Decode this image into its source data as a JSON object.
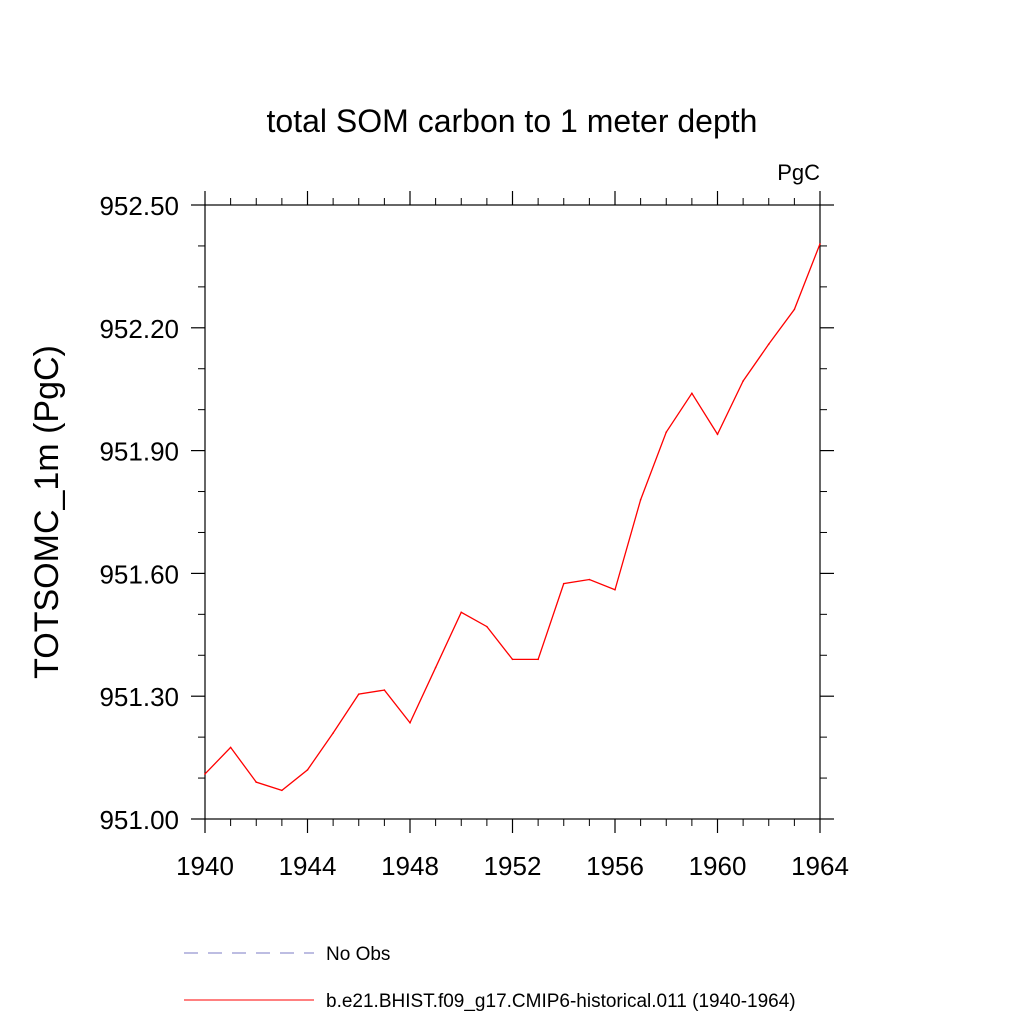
{
  "chart_data": {
    "type": "line",
    "title": "total SOM carbon to 1 meter depth",
    "units_label": "PgC",
    "ylabel": "TOTSOMC_1m  (PgC)",
    "xlabel": "",
    "xlim": [
      1940,
      1964
    ],
    "ylim": [
      951.0,
      952.5
    ],
    "x_ticks": [
      1940,
      1944,
      1948,
      1952,
      1956,
      1960,
      1964
    ],
    "x_tick_labels": [
      "1940",
      "1944",
      "1948",
      "1952",
      "1956",
      "1960",
      "1964"
    ],
    "y_ticks": [
      951.0,
      951.3,
      951.6,
      951.9,
      952.2,
      952.5
    ],
    "y_tick_labels": [
      "951.00",
      "951.30",
      "951.60",
      "951.90",
      "952.20",
      "952.50"
    ],
    "grid": false,
    "legend_position": "bottom",
    "series": [
      {
        "name": "b.e21.BHIST.f09_g17.CMIP6-historical.011 (1940-1964)",
        "color": "#ff0000",
        "dash": "solid",
        "x": [
          1940,
          1941,
          1942,
          1943,
          1944,
          1945,
          1946,
          1947,
          1948,
          1949,
          1950,
          1951,
          1952,
          1953,
          1954,
          1955,
          1956,
          1957,
          1958,
          1959,
          1960,
          1961,
          1962,
          1963,
          1964
        ],
        "values": [
          951.11,
          951.175,
          951.09,
          951.07,
          951.12,
          951.21,
          951.305,
          951.315,
          951.235,
          951.37,
          951.505,
          951.47,
          951.39,
          951.39,
          951.575,
          951.585,
          951.56,
          951.78,
          951.945,
          952.04,
          951.94,
          952.07,
          952.16,
          952.245,
          952.405
        ]
      }
    ],
    "legend": [
      {
        "label": "No Obs",
        "color": "#7b7bc4",
        "dash": "dashed"
      },
      {
        "label": "b.e21.BHIST.f09_g17.CMIP6-historical.011 (1940-1964)",
        "color": "#ff0000",
        "dash": "solid"
      }
    ]
  }
}
